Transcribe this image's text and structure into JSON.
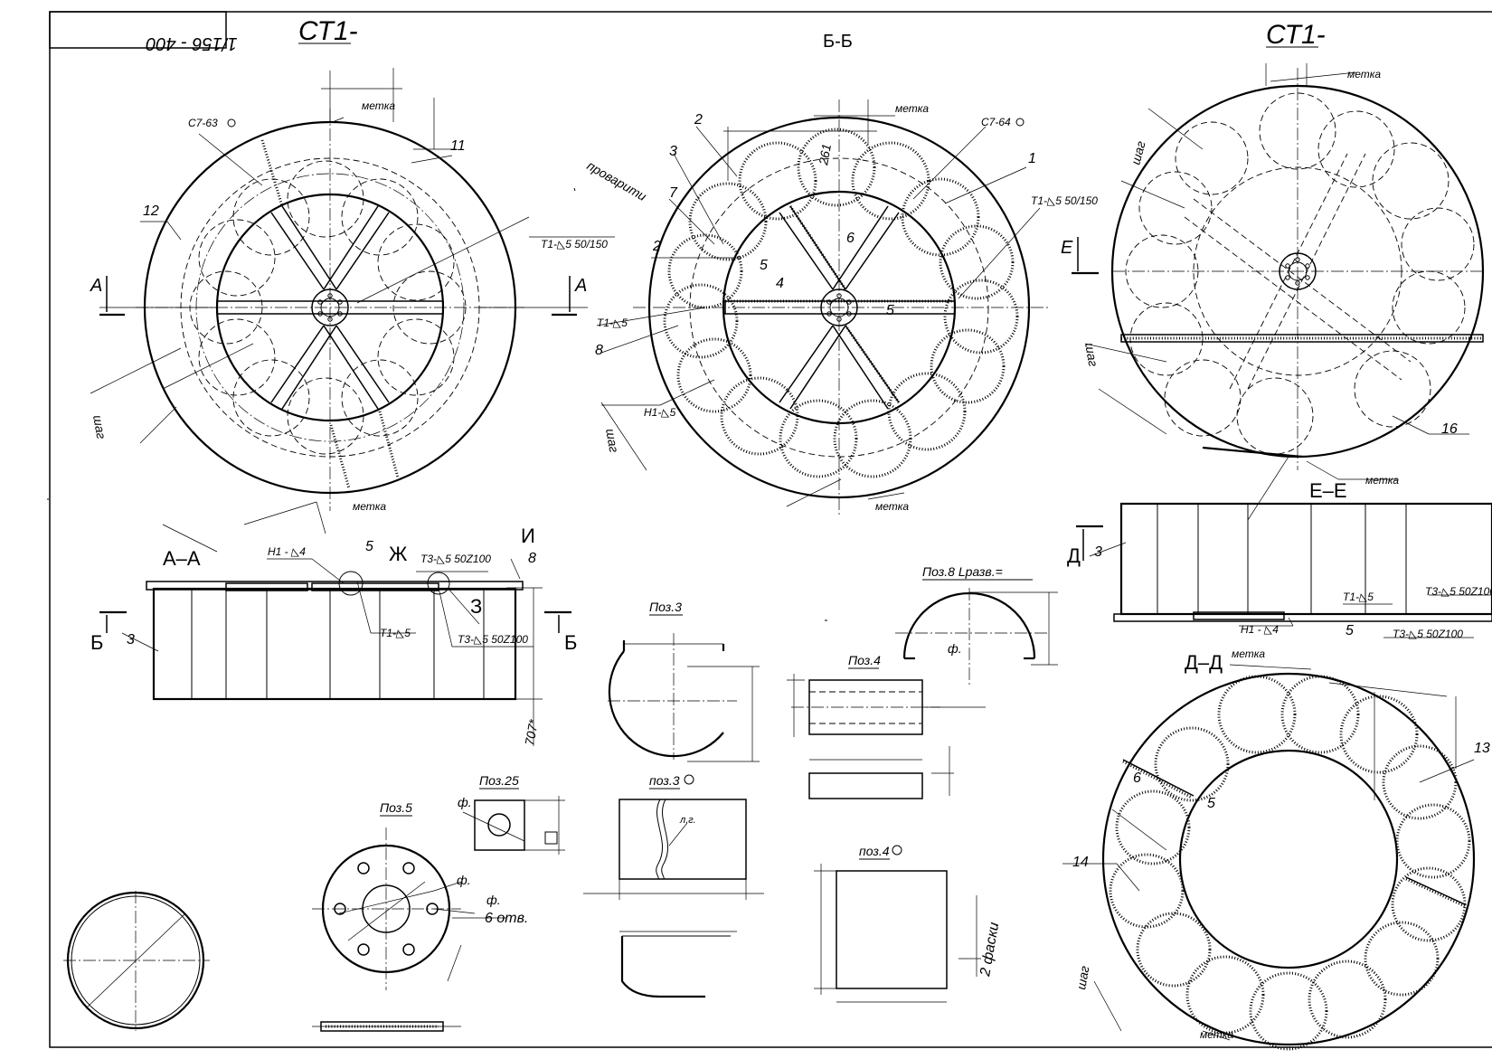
{
  "stamp": {
    "doc_number": "1/156 - 400"
  },
  "views": {
    "top_left_title": "СТ1-",
    "top_right_title": "СТ1-",
    "section_bb": "Б-Б",
    "section_aa": "А–А",
    "section_ee": "Е–Е",
    "section_dd": "Д–Д"
  },
  "labels": {
    "metka": "метка",
    "shag": "шаг",
    "provarit": "проварити",
    "c7_63": "С7-63",
    "c7_64": "С7-64",
    "t1_5_50_150": "Т1-◺5 50/150",
    "t1_5": "Т1-◺5",
    "t3_5_50z100": "Т3-◺5 50Z100",
    "h1_4": "Н1 - ◺4",
    "h1_5": "Н1-◺5",
    "dim_261": "261",
    "dim_707": "707*",
    "pos3": "Поз.3",
    "pos3_flat": "поз.3",
    "pos4": "Поз.4",
    "pos4_flat": "поз.4",
    "pos5": "Поз.5",
    "pos8": "Поз.8 Lразв.=",
    "pos25": "Поз.25",
    "holes": "6 отв.",
    "chamfers": "2 фаски",
    "phi": "ф.",
    "lg": "л.г."
  },
  "markers": {
    "A": "А",
    "B": "Б",
    "E": "Е",
    "D": "Д",
    "Zh": "Ж",
    "Z": "З",
    "I": "И"
  },
  "callouts": [
    "1",
    "2",
    "3",
    "4",
    "5",
    "6",
    "7",
    "8",
    "11",
    "12",
    "13",
    "14",
    "16"
  ]
}
